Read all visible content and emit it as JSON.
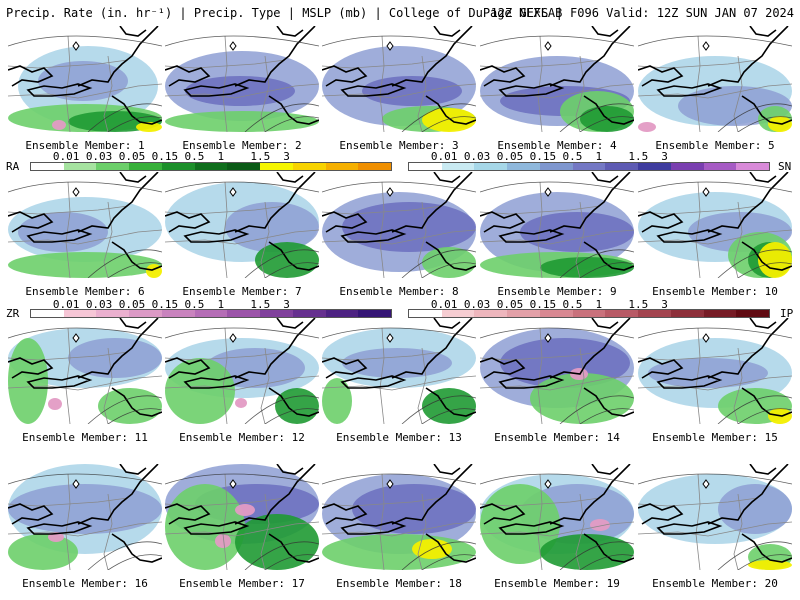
{
  "header": {
    "left": "Precip. Rate (in. hr⁻¹) | Precip. Type | MSLP (mb) | College of DuPage NEXLAB",
    "right": "12Z GEFS | F096 Valid: 12Z SUN JAN 07 2024"
  },
  "legend": {
    "rain": {
      "label": "RA",
      "ticks": [
        "0.01",
        "0.03",
        "0.05",
        "0.15",
        "0.5",
        "1",
        "1.5",
        "3"
      ],
      "colors": [
        "#ffffff",
        "#a6e3a0",
        "#6ccf6a",
        "#38b03a",
        "#1c8f2a",
        "#0f6e1c",
        "#0a5a16",
        "#f5f500",
        "#f7d300",
        "#f5b000",
        "#ef8f00"
      ]
    },
    "snow": {
      "label": "SN",
      "ticks": [
        "0.01",
        "0.03",
        "0.05",
        "0.15",
        "0.5",
        "1",
        "1.5",
        "3"
      ],
      "colors": [
        "#ffffff",
        "#c9eaf2",
        "#a6d7e8",
        "#8fb8dc",
        "#7f97cf",
        "#7478c4",
        "#5e5bb3",
        "#3f3c9e",
        "#7a3fb0",
        "#a65bc4",
        "#d88ad8"
      ]
    },
    "freezing_rain": {
      "label": "ZR",
      "ticks": [
        "0.01",
        "0.03",
        "0.05",
        "0.15",
        "0.5",
        "1",
        "1.5",
        "3"
      ],
      "colors": [
        "#ffffff",
        "#f6c6d6",
        "#ebb0cf",
        "#dc9ac6",
        "#c983be",
        "#b56db6",
        "#9c54a9",
        "#80409c",
        "#66308f",
        "#4d2282",
        "#351575"
      ]
    },
    "ice_pellets": {
      "label": "IP",
      "ticks": [
        "0.01",
        "0.03",
        "0.05",
        "0.15",
        "0.5",
        "1",
        "1.5",
        "3"
      ],
      "colors": [
        "#ffffff",
        "#f6cdd2",
        "#eeb6bd",
        "#e3a0a8",
        "#d88892",
        "#c9717c",
        "#b85a66",
        "#a3444f",
        "#8d2f3a",
        "#761b25",
        "#600a12"
      ]
    }
  },
  "panels": [
    {
      "label": "Ensemble Member: 1",
      "fill": [
        [
          "green",
          0.3
        ],
        [
          "snow",
          0.5
        ]
      ]
    },
    {
      "label": "Ensemble Member: 2"
    },
    {
      "label": "Ensemble Member: 3"
    },
    {
      "label": "Ensemble Member: 4"
    },
    {
      "label": "Ensemble Member: 5"
    },
    {
      "label": "Ensemble Member: 6"
    },
    {
      "label": "Ensemble Member: 7"
    },
    {
      "label": "Ensemble Member: 8"
    },
    {
      "label": "Ensemble Member: 9"
    },
    {
      "label": "Ensemble Member: 10"
    },
    {
      "label": "Ensemble Member: 11"
    },
    {
      "label": "Ensemble Member: 12"
    },
    {
      "label": "Ensemble Member: 13"
    },
    {
      "label": "Ensemble Member: 14"
    },
    {
      "label": "Ensemble Member: 15"
    },
    {
      "label": "Ensemble Member: 16"
    },
    {
      "label": "Ensemble Member: 17"
    },
    {
      "label": "Ensemble Member: 18"
    },
    {
      "label": "Ensemble Member: 19"
    },
    {
      "label": "Ensemble Member: 20"
    }
  ]
}
